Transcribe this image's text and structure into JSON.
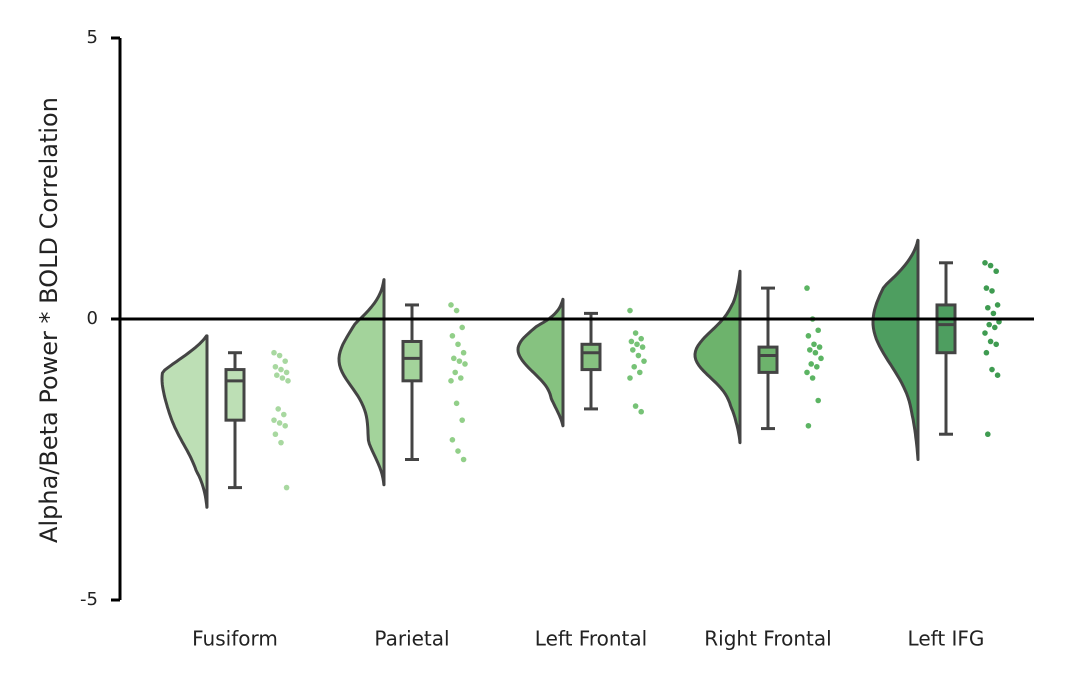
{
  "chart_data": {
    "type": "raincloud",
    "title": "",
    "xlabel": "",
    "ylabel": "Alpha/Beta Power * BOLD Correlation",
    "ylim": [
      -5,
      5
    ],
    "yticks": [
      "5",
      "0",
      "-5"
    ],
    "reference_line": 0,
    "grid": false,
    "legend": "none",
    "categories": [
      "Fusiform",
      "Parietal",
      "Left Frontal",
      "Right Frontal",
      "Left IFG"
    ],
    "colors": [
      "#bddfb5",
      "#a3d39b",
      "#86c280",
      "#6db36c",
      "#4e9e60"
    ],
    "point_colors": [
      "#a8d8a0",
      "#92cf89",
      "#76c276",
      "#5cb463",
      "#3f9b51"
    ],
    "outline_color": "#444444",
    "series": [
      {
        "name": "Fusiform",
        "box": {
          "min": -3.0,
          "q1": -1.8,
          "median": -1.1,
          "q3": -0.9,
          "max": -0.6
        },
        "violin_range": [
          -3.35,
          -0.3
        ],
        "violin_mode": -1.0,
        "points": [
          -0.6,
          -0.65,
          -0.75,
          -0.85,
          -0.9,
          -0.95,
          -1.0,
          -1.05,
          -1.1,
          -1.6,
          -1.7,
          -1.8,
          -1.85,
          -1.9,
          -2.05,
          -2.2,
          -3.0
        ]
      },
      {
        "name": "Parietal",
        "box": {
          "min": -2.5,
          "q1": -1.1,
          "median": -0.7,
          "q3": -0.4,
          "max": 0.25
        },
        "violin_range": [
          -2.95,
          0.7
        ],
        "violin_mode": -0.7,
        "points": [
          0.25,
          0.15,
          -0.15,
          -0.3,
          -0.45,
          -0.6,
          -0.7,
          -0.75,
          -0.8,
          -0.95,
          -1.05,
          -1.1,
          -1.5,
          -1.8,
          -2.15,
          -2.35,
          -2.5
        ]
      },
      {
        "name": "Left Frontal",
        "box": {
          "min": -1.6,
          "q1": -0.9,
          "median": -0.6,
          "q3": -0.45,
          "max": 0.1
        },
        "violin_range": [
          -1.9,
          0.35
        ],
        "violin_mode": -0.5,
        "points": [
          0.15,
          -0.25,
          -0.35,
          -0.4,
          -0.45,
          -0.5,
          -0.55,
          -0.65,
          -0.75,
          -0.85,
          -0.95,
          -1.05,
          -1.55,
          -1.65
        ]
      },
      {
        "name": "Right Frontal",
        "box": {
          "min": -1.95,
          "q1": -0.95,
          "median": -0.65,
          "q3": -0.5,
          "max": 0.55
        },
        "violin_range": [
          -2.2,
          0.85
        ],
        "violin_mode": -0.7,
        "points": [
          0.55,
          0.0,
          -0.2,
          -0.3,
          -0.45,
          -0.5,
          -0.55,
          -0.6,
          -0.7,
          -0.8,
          -0.85,
          -0.95,
          -1.05,
          -1.45,
          -1.9
        ]
      },
      {
        "name": "Left IFG",
        "box": {
          "min": -2.05,
          "q1": -0.6,
          "median": -0.1,
          "q3": 0.25,
          "max": 1.0
        },
        "violin_range": [
          -2.5,
          1.4
        ],
        "violin_mode": -0.1,
        "points": [
          1.0,
          0.95,
          0.85,
          0.55,
          0.5,
          0.25,
          0.2,
          0.1,
          -0.05,
          -0.1,
          -0.15,
          -0.25,
          -0.4,
          -0.45,
          -0.6,
          -0.9,
          -1.0,
          -2.05
        ]
      }
    ]
  }
}
